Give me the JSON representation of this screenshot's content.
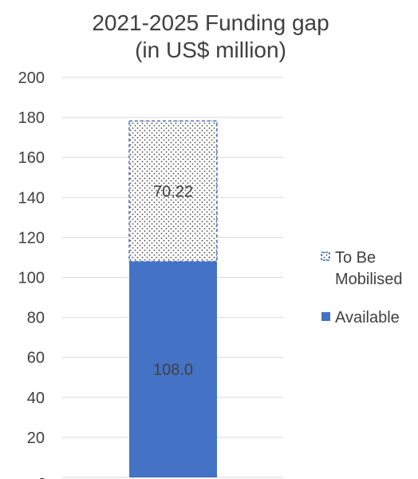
{
  "chart_data": {
    "type": "bar",
    "stacked": true,
    "title_lines": [
      "2021-2025 Funding gap",
      "(in US$ million)"
    ],
    "categories": [
      ""
    ],
    "y_ticks": [
      "-",
      "20",
      "40",
      "60",
      "80",
      "100",
      "120",
      "140",
      "160",
      "180",
      "200"
    ],
    "ylim": [
      0,
      200
    ],
    "grid": true,
    "legend_position": "right",
    "series": [
      {
        "name": "Available",
        "values": [
          108.0
        ],
        "data_label": "108.0",
        "color": "#4472C4",
        "style": "solid"
      },
      {
        "name": "To Be Mobilised",
        "values": [
          70.22
        ],
        "data_label": "70.22",
        "color": "#4472C4",
        "style": "dotted"
      }
    ],
    "legend": [
      {
        "lines": [
          "To Be",
          "Mobilised"
        ],
        "icon": "dotted-square-icon"
      },
      {
        "lines": [
          "Available"
        ],
        "icon": "solid-square-icon"
      }
    ]
  }
}
